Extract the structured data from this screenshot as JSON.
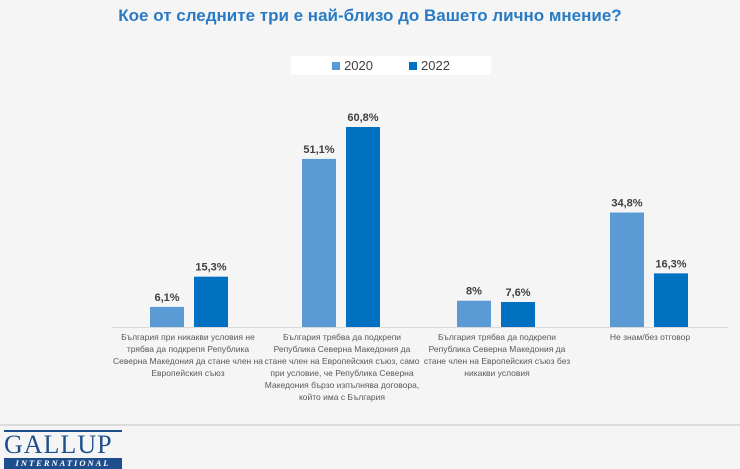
{
  "chart_data": {
    "type": "bar",
    "title": "Кое от следните три е най-близо до Вашето лично мнение?",
    "categories": [
      "България при никакви условия не трябва да подкрепя Република Северна Македония да стане член на Европейския съюз",
      "България трябва да подкрепи Република Северна Македония да стане член на Европейския съюз, само при условие, че Република Северна Македония бързо изпълнява договора, който има с България",
      "България трябва да подкрепи Република Северна Македония да стане член на Европейския съюз без никакви условия",
      "Не знам/без отговор"
    ],
    "series": [
      {
        "name": "2020",
        "color": "#5b9bd5",
        "values": [
          6.1,
          51.1,
          8,
          34.8
        ],
        "labels": [
          "6,1%",
          "51,1%",
          "8%",
          "34,8%"
        ]
      },
      {
        "name": "2022",
        "color": "#0070c0",
        "values": [
          15.3,
          60.8,
          7.6,
          16.3
        ],
        "labels": [
          "15,3%",
          "60,8%",
          "7,6%",
          "16,3%"
        ]
      }
    ],
    "xlabel": "",
    "ylabel": "",
    "ylim": [
      0,
      65
    ],
    "grid": false,
    "legend": "top"
  },
  "logo": {
    "top": "GALLUP",
    "bottom": "INTERNATIONAL"
  }
}
